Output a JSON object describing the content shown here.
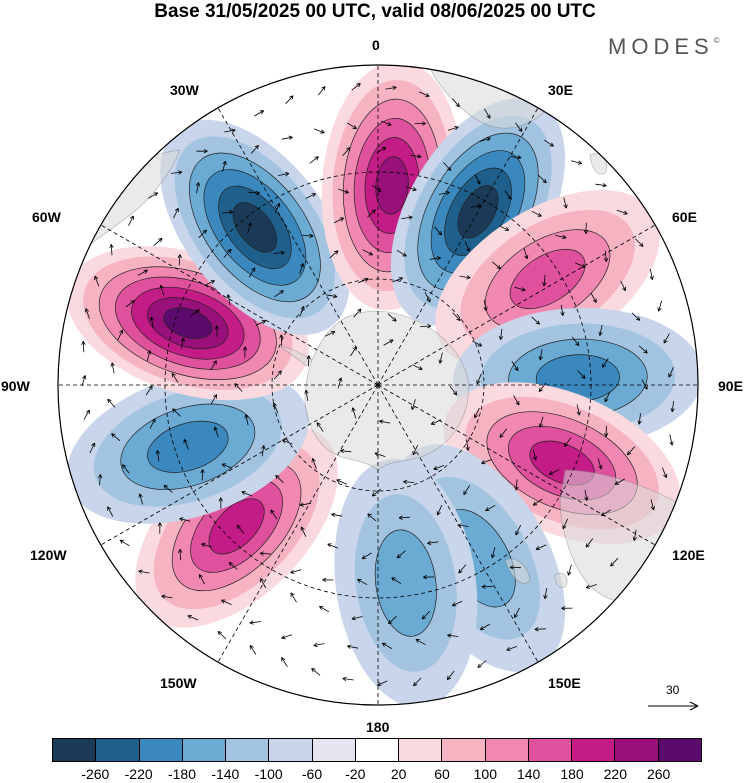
{
  "title": "Base 31/05/2025 00 UTC, valid 08/06/2025 00 UTC",
  "brand": {
    "name": "MODES",
    "mark": "©"
  },
  "longitude_labels": {
    "lon_0": "0",
    "lon_30e": "30E",
    "lon_60e": "60E",
    "lon_90e": "90E",
    "lon_120e": "120E",
    "lon_150e": "150E",
    "lon_180": "180",
    "lon_150w": "150W",
    "lon_120w": "120W",
    "lon_90w": "90W",
    "lon_60w": "60W",
    "lon_30w": "30W"
  },
  "reference_vector": {
    "label": "30"
  },
  "colorbar": {
    "colors": [
      "#1b3a57",
      "#1e5f8c",
      "#3a88be",
      "#6aaad3",
      "#a3c4e1",
      "#c8d5ea",
      "#e6e6f2",
      "#ffffff",
      "#fadadf",
      "#f6b4c2",
      "#f088b1",
      "#e0519d",
      "#c41c86",
      "#99107a",
      "#5c0a6b"
    ],
    "ticks": [
      "-260",
      "-220",
      "-180",
      "-140",
      "-100",
      "-60",
      "-20",
      "20",
      "60",
      "100",
      "140",
      "180",
      "220",
      "260"
    ]
  },
  "anomaly_lobes": [
    {
      "lon": -135,
      "sign": "positive",
      "level": 4
    },
    {
      "lon": -108,
      "sign": "negative",
      "level": 3
    },
    {
      "lon": -72,
      "sign": "positive",
      "level": 6
    },
    {
      "lon": -38,
      "sign": "negative",
      "level": 5
    },
    {
      "lon": 4,
      "sign": "positive",
      "level": 5
    },
    {
      "lon": 30,
      "sign": "negative",
      "level": 5
    },
    {
      "lon": 58,
      "sign": "positive",
      "level": 3
    },
    {
      "lon": 88,
      "sign": "negative",
      "level": 3
    },
    {
      "lon": 113,
      "sign": "positive",
      "level": 4
    },
    {
      "lon": 150,
      "sign": "negative",
      "level": 2
    },
    {
      "lon": 172,
      "sign": "negative",
      "level": 2
    }
  ]
}
